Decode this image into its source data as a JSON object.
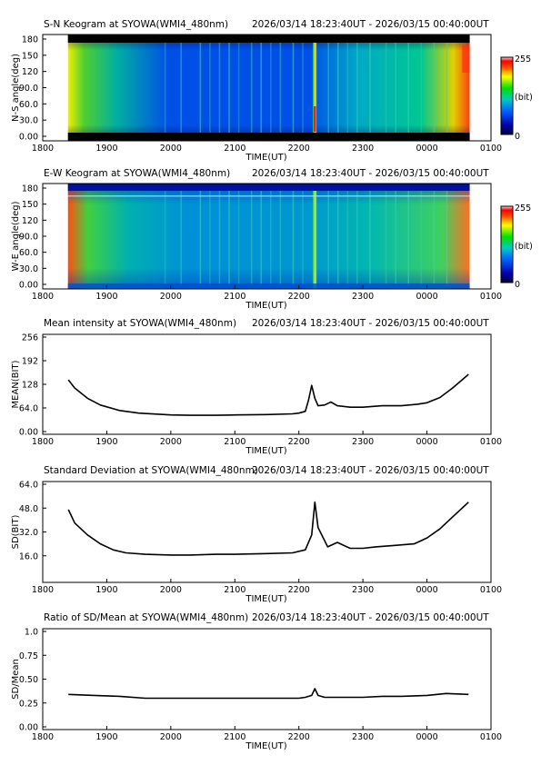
{
  "chart_data": [
    {
      "type": "heatmap",
      "id": "sn",
      "title": "S-N Keogram at SYOWA(WMI4_480nm)",
      "time_range": "2026/03/14 18:23:40UT - 2026/03/15 00:40:00UT",
      "xlabel": "TIME(UT)",
      "ylabel": "N-S angle(deg)",
      "x_ticks": [
        "1800",
        "1900",
        "2000",
        "2100",
        "2200",
        "2300",
        "0000",
        "0100"
      ],
      "y_ticks": [
        "0.00",
        "30.0",
        "60.0",
        "90.0",
        "120",
        "150",
        "180"
      ],
      "colorbar": {
        "max_label": "255",
        "unit_label": "(bit)",
        "min_label": "0"
      }
    },
    {
      "type": "heatmap",
      "id": "ew",
      "title": "E-W Keogram at SYOWA(WMI4_480nm)",
      "time_range": "2026/03/14 18:23:40UT - 2026/03/15 00:40:00UT",
      "xlabel": "TIME(UT)",
      "ylabel": "W-E angle(deg)",
      "x_ticks": [
        "1800",
        "1900",
        "2000",
        "2100",
        "2200",
        "2300",
        "0000",
        "0100"
      ],
      "y_ticks": [
        "0.00",
        "30.0",
        "60.0",
        "90.0",
        "120",
        "150",
        "180"
      ],
      "colorbar": {
        "max_label": "255",
        "unit_label": "(bit)",
        "min_label": "0"
      }
    },
    {
      "type": "line",
      "id": "mean",
      "title": "Mean intensity at SYOWA(WMI4_480nm)",
      "time_range": "2026/03/14 18:23:40UT - 2026/03/15 00:40:00UT",
      "xlabel": "TIME(UT)",
      "ylabel": "MEAN(BIT)",
      "x_ticks": [
        "1800",
        "1900",
        "2000",
        "2100",
        "2200",
        "2300",
        "0000",
        "0100"
      ],
      "y_ticks": [
        "0.00",
        "64.0",
        "128",
        "192",
        "256"
      ],
      "ylim": [
        0,
        256
      ],
      "series": [
        {
          "x": [
            18.4,
            18.5,
            18.7,
            18.9,
            19.2,
            19.5,
            20.0,
            20.3,
            20.7,
            21.0,
            21.5,
            21.9,
            22.0,
            22.1,
            22.15,
            22.2,
            22.25,
            22.3,
            22.4,
            22.5,
            22.6,
            22.8,
            23.0,
            23.3,
            23.6,
            23.85,
            24.0,
            24.2,
            24.4,
            24.65
          ],
          "y": [
            140,
            118,
            90,
            72,
            57,
            50,
            45,
            44,
            44,
            45,
            46,
            48,
            50,
            55,
            85,
            125,
            90,
            70,
            72,
            80,
            70,
            66,
            66,
            70,
            70,
            74,
            78,
            92,
            118,
            155
          ]
        }
      ]
    },
    {
      "type": "line",
      "id": "sd",
      "title": "Standard Deviation at SYOWA(WMI4_480nm)",
      "time_range": "2026/03/14 18:23:40UT - 2026/03/15 00:40:00UT",
      "xlabel": "TIME(UT)",
      "ylabel": "SD(BIT)",
      "x_ticks": [
        "1800",
        "1900",
        "2000",
        "2100",
        "2200",
        "2300",
        "0000",
        "0100"
      ],
      "y_ticks": [
        "16.0",
        "32.0",
        "48.0",
        "64.0"
      ],
      "ylim": [
        0,
        64
      ],
      "series": [
        {
          "x": [
            18.4,
            18.5,
            18.7,
            18.9,
            19.1,
            19.3,
            19.6,
            20.0,
            20.3,
            20.7,
            21.0,
            21.5,
            21.9,
            22.1,
            22.2,
            22.25,
            22.3,
            22.45,
            22.6,
            22.8,
            23.0,
            23.2,
            23.5,
            23.8,
            24.0,
            24.2,
            24.4,
            24.65
          ],
          "y": [
            47,
            38,
            30,
            24,
            20,
            18,
            17,
            16.5,
            16.5,
            17,
            17,
            17.5,
            18,
            20,
            30,
            52,
            35,
            22,
            25,
            21,
            21,
            22,
            23,
            24,
            28,
            34,
            42,
            52
          ]
        }
      ]
    },
    {
      "type": "line",
      "id": "ratio",
      "title": "Ratio of SD/Mean at SYOWA(WMI4_480nm)",
      "time_range": "2026/03/14 18:23:40UT - 2026/03/15 00:40:00UT",
      "xlabel": "TIME(UT)",
      "ylabel": "SD/Mean",
      "x_ticks": [
        "1800",
        "1900",
        "2000",
        "2100",
        "2200",
        "2300",
        "0000",
        "0100"
      ],
      "y_ticks": [
        "0.00",
        "0.25",
        "0.50",
        "0.75",
        "1.0"
      ],
      "ylim": [
        0,
        1
      ],
      "series": [
        {
          "x": [
            18.4,
            18.8,
            19.2,
            19.6,
            20.0,
            20.4,
            20.8,
            21.2,
            21.6,
            22.0,
            22.1,
            22.2,
            22.25,
            22.3,
            22.4,
            22.6,
            22.8,
            23.0,
            23.3,
            23.6,
            24.0,
            24.3,
            24.65
          ],
          "y": [
            0.34,
            0.33,
            0.32,
            0.3,
            0.3,
            0.3,
            0.3,
            0.3,
            0.3,
            0.3,
            0.31,
            0.33,
            0.4,
            0.33,
            0.31,
            0.31,
            0.31,
            0.31,
            0.32,
            0.32,
            0.33,
            0.35,
            0.34
          ]
        }
      ]
    }
  ],
  "colors": {
    "line": "#000000",
    "frame": "#000000"
  }
}
